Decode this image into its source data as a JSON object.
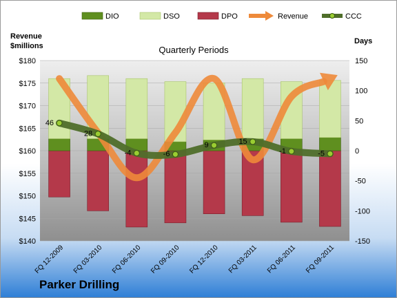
{
  "company": "Parker Drilling",
  "chart_data": {
    "type": "bar",
    "title": "Quarterly Periods",
    "left_axis_label": [
      "Revenue",
      "$millions"
    ],
    "right_axis_label": "Days",
    "categories": [
      "FQ 12-2009",
      "FQ 03-2010",
      "FQ 06-2010",
      "FQ 09-2010",
      "FQ 12-2010",
      "FQ 03-2011",
      "FQ 06-2011",
      "FQ 09-2011"
    ],
    "left_axis": {
      "min": 140,
      "max": 180,
      "step": 5,
      "prefix": "$",
      "ticks": [
        "$140",
        "$145",
        "$150",
        "$155",
        "$160",
        "$165",
        "$170",
        "$175",
        "$180"
      ]
    },
    "right_axis": {
      "min": -150,
      "max": 150,
      "step": 50,
      "ticks": [
        "-150",
        "-100",
        "-50",
        "0",
        "50",
        "100",
        "150"
      ]
    },
    "series": [
      {
        "name": "DIO",
        "type": "bar",
        "axis": "days",
        "color": "#5f8f1f",
        "values": [
          20,
          20,
          20,
          15,
          18,
          20,
          20,
          22
        ]
      },
      {
        "name": "DSO",
        "type": "bar",
        "axis": "days",
        "color": "#d3e8a6",
        "values": [
          100,
          105,
          100,
          100,
          95,
          100,
          95,
          95
        ]
      },
      {
        "name": "DPO",
        "type": "bar",
        "axis": "days",
        "color": "#b4394a",
        "values": [
          -77,
          -100,
          -127,
          -120,
          -105,
          -108,
          -119,
          -126
        ]
      },
      {
        "name": "Revenue",
        "type": "line",
        "axis": "revenue",
        "color": "#ee8a3a",
        "values": [
          176,
          164,
          154,
          164,
          176,
          158,
          172,
          176
        ]
      },
      {
        "name": "CCC",
        "type": "line",
        "axis": "days",
        "color": "#4f6e2a",
        "values": [
          46,
          28,
          -4,
          -6,
          9,
          15,
          -1,
          -5
        ]
      }
    ],
    "data_labels": [
      "46",
      "28",
      "-4",
      "-6",
      "9",
      "15",
      "-1",
      "-5"
    ],
    "legend_position": "top"
  }
}
